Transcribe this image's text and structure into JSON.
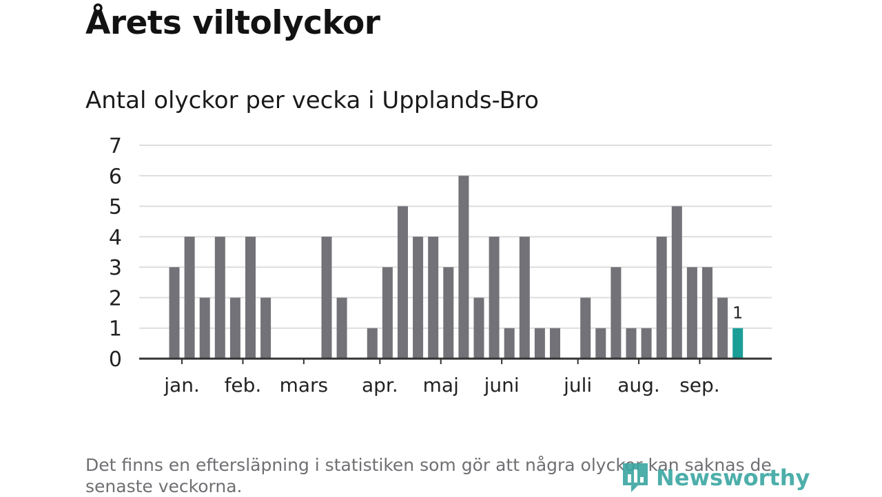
{
  "title": "Årets viltolyckor",
  "subtitle": "Antal olyckor per vecka i Upplands-Bro",
  "footnote": "Det finns en eftersläpning i statistiken som gör att några olyckor kan saknas de senaste veckorna.",
  "logo": {
    "text": "Newsworthy",
    "icon": "newsworthy-logo-icon"
  },
  "colors": {
    "bar": "#737278",
    "highlight": "#1a9e96",
    "grid": "#dddddd",
    "axis": "#333333",
    "text": "#222222"
  },
  "chart_data": {
    "type": "bar",
    "title": "Antal olyckor per vecka i Upplands-Bro",
    "xlabel": "",
    "ylabel": "",
    "ylim": [
      0,
      7
    ],
    "yticks": [
      "0",
      "1",
      "2",
      "3",
      "4",
      "5",
      "6",
      "7"
    ],
    "grid": true,
    "weeks": [
      1,
      2,
      3,
      4,
      5,
      6,
      7,
      8,
      9,
      10,
      11,
      12,
      13,
      14,
      15,
      16,
      17,
      18,
      19,
      20,
      21,
      22,
      23,
      24,
      25,
      26,
      27,
      28,
      29,
      30,
      31,
      32,
      33,
      34,
      35,
      36,
      37,
      38
    ],
    "values": [
      3,
      4,
      2,
      4,
      2,
      4,
      2,
      0,
      0,
      0,
      4,
      2,
      0,
      1,
      3,
      5,
      4,
      4,
      3,
      6,
      2,
      4,
      1,
      4,
      1,
      1,
      0,
      2,
      1,
      3,
      1,
      1,
      4,
      5,
      3,
      3,
      2,
      1
    ],
    "highlight_index": 37,
    "highlight_label": "1",
    "month_labels": [
      {
        "label": "jan.",
        "week": 1.5
      },
      {
        "label": "feb.",
        "week": 5.5
      },
      {
        "label": "mars",
        "week": 9.5
      },
      {
        "label": "apr.",
        "week": 14.5
      },
      {
        "label": "maj",
        "week": 18.5
      },
      {
        "label": "juni",
        "week": 22.5
      },
      {
        "label": "juli",
        "week": 27.5
      },
      {
        "label": "aug.",
        "week": 31.5
      },
      {
        "label": "sep.",
        "week": 35.5
      }
    ]
  }
}
